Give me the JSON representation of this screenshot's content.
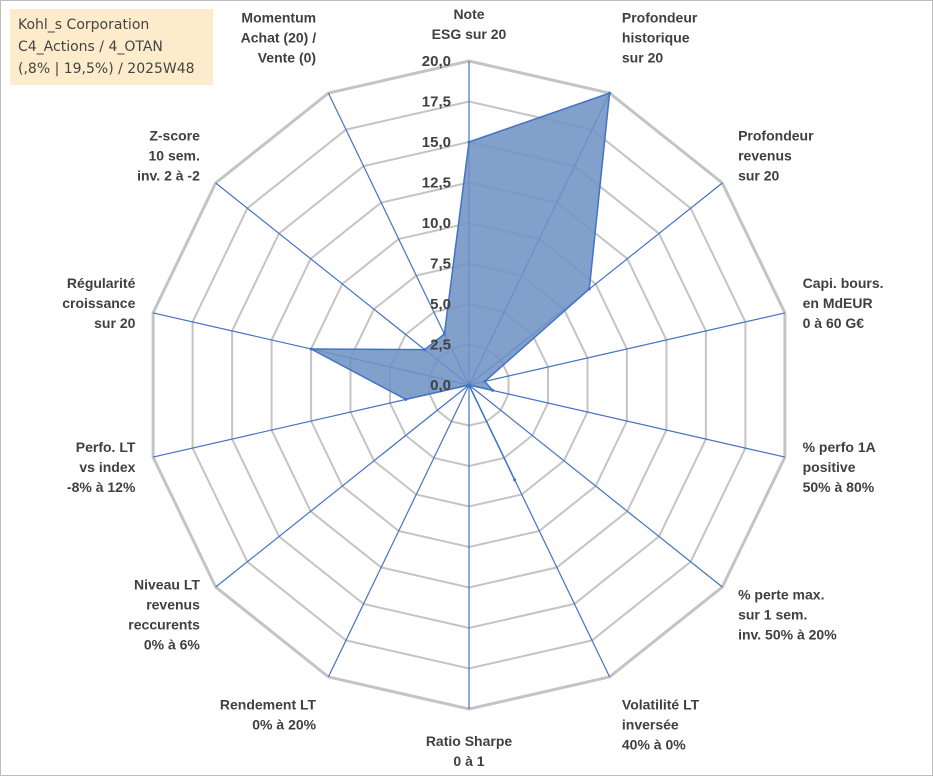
{
  "title_box": {
    "line1": "Kohl_s Corporation",
    "line2": "C4_Actions / 4_OTAN",
    "line3": "(,8% | 19,5%) / 2025W48",
    "background": "#fdeccc"
  },
  "chart_data": {
    "type": "radar",
    "title": "",
    "rlim": [
      0,
      20
    ],
    "ticks": [
      "0,0",
      "2,5",
      "5,0",
      "7,5",
      "10,0",
      "12,5",
      "15,0",
      "17,5",
      "20,0"
    ],
    "grid": true,
    "legend": "none",
    "fill_color": "#6f93c4",
    "line_color": "#4472c4",
    "axes": [
      {
        "label": [
          "Note",
          "ESG sur 20"
        ]
      },
      {
        "label": [
          "Profondeur",
          "historique",
          "sur 20"
        ]
      },
      {
        "label": [
          "Profondeur",
          "revenus",
          "sur 20"
        ]
      },
      {
        "label": [
          "Capi. bours.",
          "en MdEUR",
          "0 à 60 G€"
        ]
      },
      {
        "label": [
          "% perfo 1A",
          "positive",
          "50% à 80%"
        ]
      },
      {
        "label": [
          "% perte max.",
          "sur 1 sem.",
          "inv. 50% à 20%"
        ]
      },
      {
        "label": [
          "Volatilité LT",
          "inversée",
          "40% à 0%"
        ]
      },
      {
        "label": [
          "Ratio Sharpe",
          "0 à 1"
        ]
      },
      {
        "label": [
          "Rendement LT",
          "0% à 20%"
        ]
      },
      {
        "label": [
          "Niveau LT",
          "revenus",
          "reccurents",
          "0% à 6%"
        ]
      },
      {
        "label": [
          "Perfo. LT",
          "vs index",
          "-8% à 12%"
        ]
      },
      {
        "label": [
          "Régularité",
          "croissance",
          "sur 20"
        ]
      },
      {
        "label": [
          "Z-score",
          "10 sem.",
          "inv. 2 à -2"
        ]
      },
      {
        "label": [
          "Momentum",
          "Achat (20) /",
          "Vente (0)"
        ]
      }
    ],
    "series": [
      {
        "values": [
          15.0,
          20.0,
          9.5,
          1.0,
          1.5,
          0.0,
          6.5,
          0.0,
          0.0,
          0.0,
          4.0,
          10.0,
          3.5,
          3.5
        ]
      }
    ]
  }
}
